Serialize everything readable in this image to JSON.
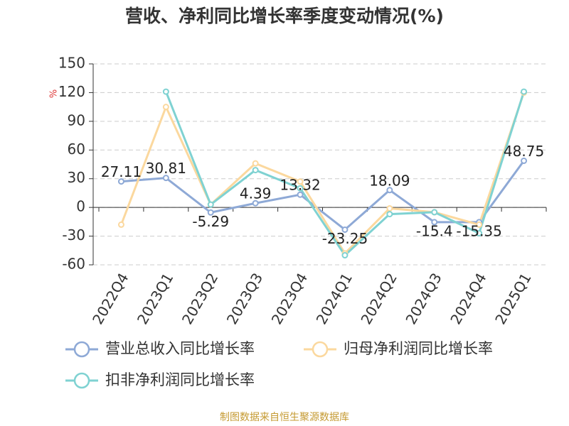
{
  "chart_data": {
    "type": "line",
    "title": "营收、净利同比增长率季度变动情况(%)",
    "y_label": "%",
    "source": "制图数据来自恒生聚源数据库",
    "categories": [
      "2022Q4",
      "2023Q1",
      "2023Q2",
      "2023Q3",
      "2023Q4",
      "2024Q1",
      "2024Q2",
      "2024Q3",
      "2024Q4",
      "2025Q1"
    ],
    "series": [
      {
        "name": "营业总收入同比增长率",
        "color": "#8ea9d6",
        "values": [
          27.11,
          30.81,
          -5.29,
          4.39,
          13.32,
          -23.25,
          18.09,
          -15.4,
          -15.35,
          48.75
        ],
        "show_labels": true
      },
      {
        "name": "归母净利润同比增长率",
        "color": "#fbd89e",
        "values": [
          -18,
          105,
          3,
          46,
          27,
          -48,
          -1,
          -5,
          -18,
          120
        ]
      },
      {
        "name": "扣非净利润同比增长率",
        "color": "#7fd2d2",
        "values": [
          null,
          121,
          3,
          39,
          20,
          -50,
          -7,
          -5,
          -27,
          121
        ]
      }
    ],
    "ylim": [
      -60,
      150
    ],
    "yticks": [
      -60,
      -30,
      0,
      30,
      60,
      90,
      120,
      150
    ],
    "grid": true
  }
}
